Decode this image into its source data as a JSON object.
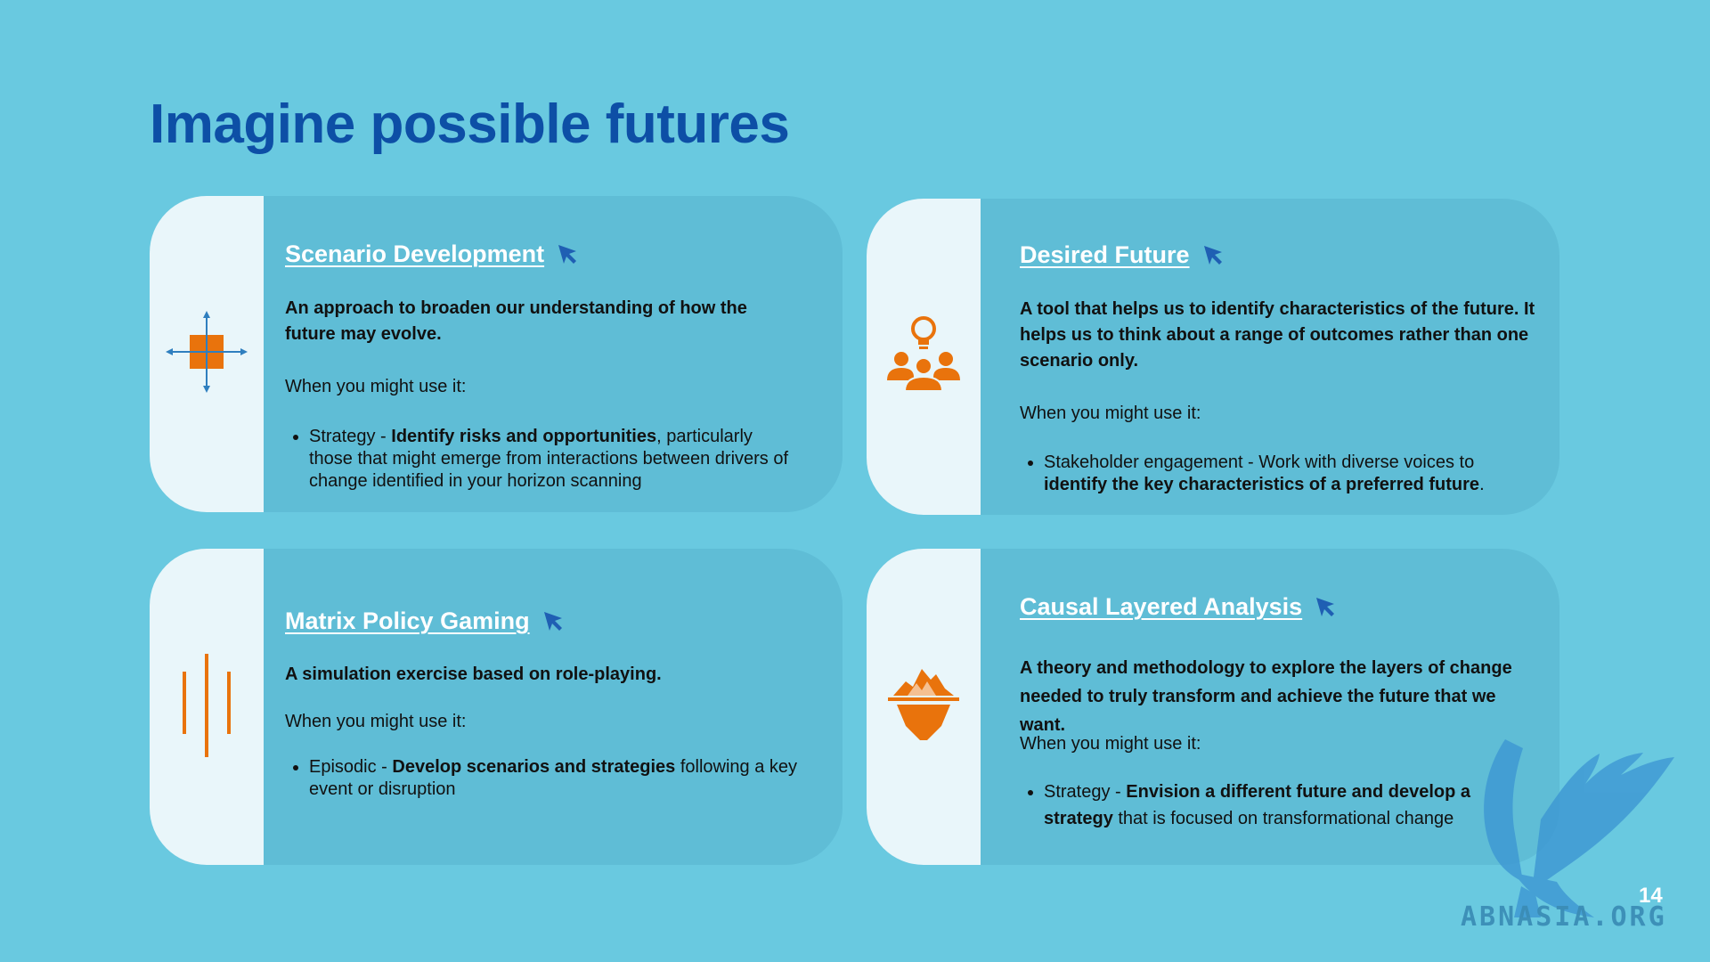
{
  "slide": {
    "title": "Imagine possible futures",
    "page_number": "14"
  },
  "colors": {
    "background": "#69c9e0",
    "title": "#0d4fa6",
    "card": "#5fbdd6",
    "icon_panel": "#e9f6fa",
    "icon_accent": "#e9730c",
    "cursor": "#1f5fb3"
  },
  "cards": [
    {
      "title": "Scenario Development",
      "icon": "scenario-matrix-icon",
      "description": "An approach to broaden our understanding of how the future may evolve.",
      "when_label": "When you might use it:",
      "uses": [
        {
          "prefix": "Strategy - ",
          "bold": "Identify risks and opportunities",
          "suffix": ", particularly those that might emerge from interactions between drivers of change identified in your horizon scanning"
        }
      ]
    },
    {
      "title": "Desired Future",
      "icon": "lightbulb-group-icon",
      "description": "A tool that helps us to identify characteristics of the future. It helps us to think about a range of outcomes rather than one scenario only.",
      "when_label": "When you might use it:",
      "uses": [
        {
          "prefix": "Stakeholder engagement - Work with diverse voices to ",
          "bold": "identify the key characteristics of a preferred future",
          "suffix": "."
        }
      ]
    },
    {
      "title": "Matrix Policy Gaming",
      "icon": "vertical-lines-icon",
      "description": "A simulation exercise based on role-playing.",
      "when_label": "When you might use it:",
      "uses": [
        {
          "prefix": "Episodic - ",
          "bold": "Develop scenarios and strategies",
          "suffix": " following a key event or disruption"
        }
      ]
    },
    {
      "title": "Causal Layered Analysis",
      "icon": "iceberg-icon",
      "description": "A theory and methodology to explore the layers of change needed to truly transform and achieve the future that we want.",
      "when_label": "When you might use it:",
      "uses": [
        {
          "prefix": "Strategy - ",
          "bold": "Envision a different future and develop a strategy",
          "suffix": " that is focused on transformational change"
        }
      ]
    }
  ],
  "watermark": {
    "icon": "griffin-logo-icon",
    "text": "ABNASIA.ORG"
  }
}
